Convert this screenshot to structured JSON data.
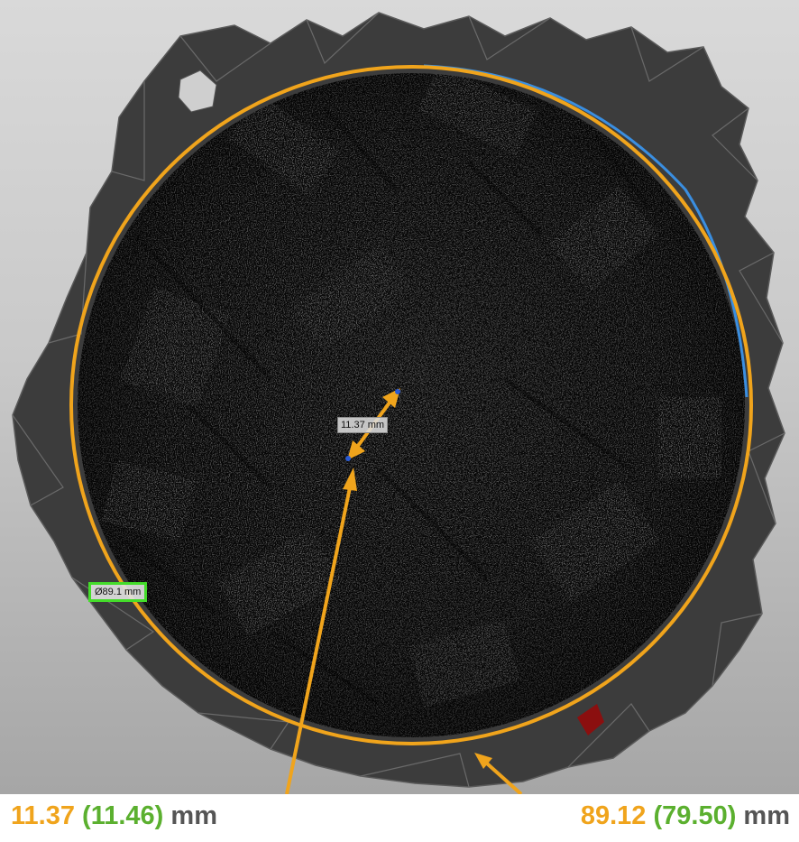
{
  "viewport": {
    "distance_label": "11.37 mm",
    "diameter_label": "Ø89.1 mm",
    "colors": {
      "fit_circle": "#f0a41c",
      "arrows": "#f0a41c",
      "diameter_tag_border": "#44dd2a",
      "edge_highlight": "#3a8ee0",
      "mesh_gray": "#3c3c3c",
      "red_patch": "#8b0f0f"
    }
  },
  "caption": {
    "left": {
      "value": "11.37",
      "paren": "(11.46)",
      "unit": "mm"
    },
    "right": {
      "value": "89.12",
      "paren": "(79.50)",
      "unit": "mm"
    },
    "colors": {
      "value": "#f0a41c",
      "paren": "#5bb02f",
      "unit": "#555555"
    }
  }
}
